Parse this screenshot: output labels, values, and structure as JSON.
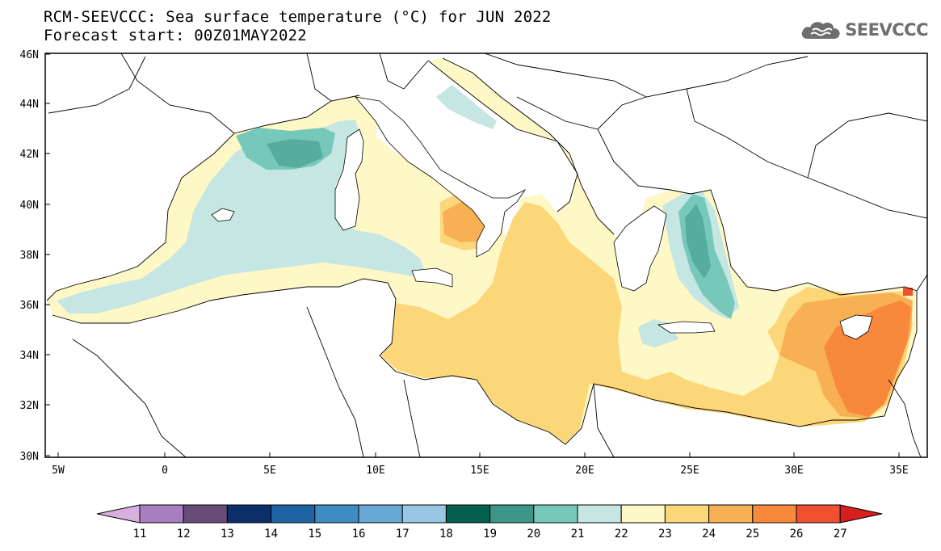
{
  "title": {
    "line1": "RCM-SEEVCCC: Sea surface temperature (°C) for JUN 2022",
    "line2": "Forecast start: 00Z01MAY2022"
  },
  "logo": {
    "text": "SEEVCCC",
    "icon": "cloud-icon"
  },
  "map": {
    "lon_range": [
      -5.5,
      36.5
    ],
    "lat_range": [
      30,
      46
    ],
    "lat_ticks": [
      "30N",
      "32N",
      "34N",
      "36N",
      "38N",
      "40N",
      "42N",
      "44N",
      "46N"
    ],
    "lon_ticks": [
      "5W",
      "0",
      "5E",
      "10E",
      "15E",
      "20E",
      "25E",
      "30E",
      "35E"
    ],
    "land_color": "#ffffff",
    "border_color": "#000000"
  },
  "colorbar": {
    "labels": [
      "11",
      "12",
      "13",
      "14",
      "15",
      "16",
      "17",
      "18",
      "19",
      "20",
      "21",
      "22",
      "23",
      "24",
      "25",
      "26",
      "27"
    ],
    "colors": [
      "#d8b0e0",
      "#a77fc0",
      "#674c78",
      "#0c2f6a",
      "#1e63a3",
      "#3d8cc2",
      "#68a8d6",
      "#99c6e3",
      "#055f4e",
      "#3c9687",
      "#76c9ba",
      "#c5e6e2",
      "#fef8c6",
      "#fcd77a",
      "#f8b054",
      "#f7883c",
      "#ee5030",
      "#d71e1e"
    ]
  }
}
